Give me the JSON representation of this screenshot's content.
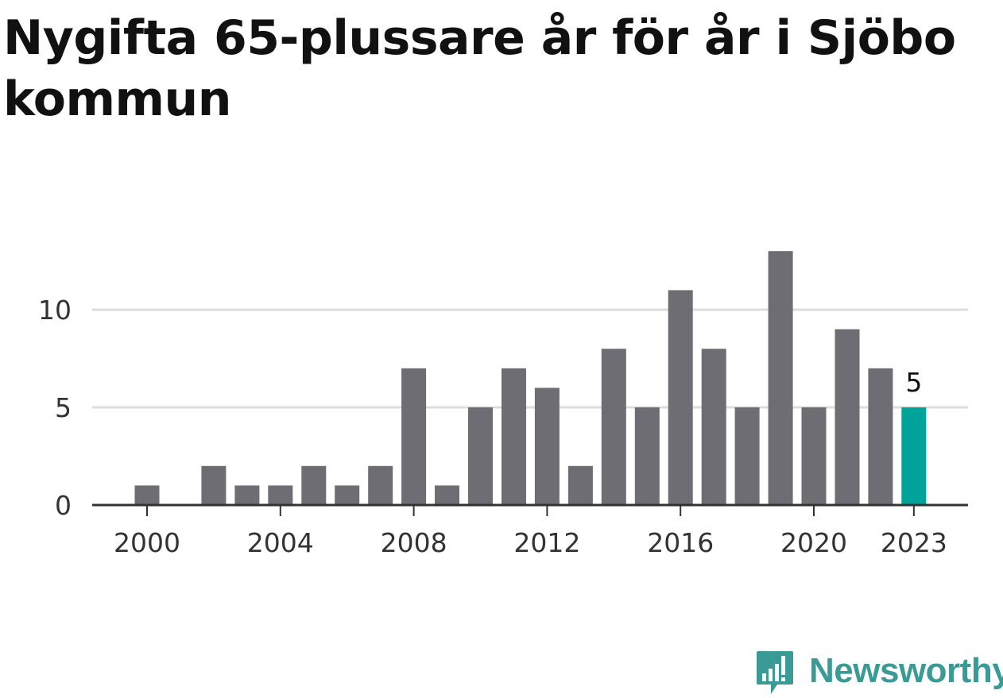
{
  "title": "Nygifta 65-plussare år för år i Sjöbo kommun",
  "brand": {
    "name": "Newsworthy",
    "color": "#3a9b96",
    "icon": "newsworthy-logo-icon"
  },
  "colors": {
    "bar": "#6e6d73",
    "highlight": "#00a39a",
    "grid": "#dcdcdc",
    "axis": "#333333",
    "tick_text": "#333333"
  },
  "chart_data": {
    "type": "bar",
    "title": "Nygifta 65-plussare år för år i Sjöbo kommun",
    "xlabel": "",
    "ylabel": "",
    "categories": [
      "2000",
      "2001",
      "2002",
      "2003",
      "2004",
      "2005",
      "2006",
      "2007",
      "2008",
      "2009",
      "2010",
      "2011",
      "2012",
      "2013",
      "2014",
      "2015",
      "2016",
      "2017",
      "2018",
      "2019",
      "2020",
      "2021",
      "2022",
      "2023"
    ],
    "values": [
      1,
      0,
      2,
      1,
      1,
      2,
      1,
      2,
      7,
      1,
      5,
      7,
      6,
      2,
      8,
      5,
      11,
      8,
      5,
      13,
      5,
      9,
      7,
      5
    ],
    "highlight_category": "2023",
    "highlight_label": "5",
    "ylim": [
      0,
      13
    ],
    "yticks": [
      0,
      5,
      10
    ],
    "xticks": [
      "2000",
      "2004",
      "2008",
      "2012",
      "2016",
      "2020",
      "2023"
    ],
    "grid": true,
    "legend": "none"
  }
}
